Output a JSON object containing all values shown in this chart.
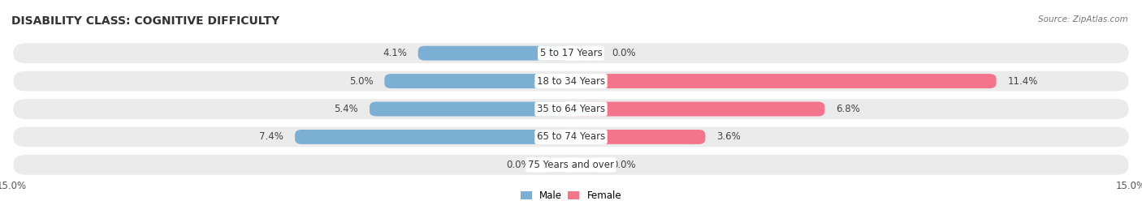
{
  "title": "DISABILITY CLASS: COGNITIVE DIFFICULTY",
  "source": "Source: ZipAtlas.com",
  "categories": [
    "5 to 17 Years",
    "18 to 34 Years",
    "35 to 64 Years",
    "65 to 74 Years",
    "75 Years and over"
  ],
  "male_values": [
    4.1,
    5.0,
    5.4,
    7.4,
    0.0
  ],
  "female_values": [
    0.0,
    11.4,
    6.8,
    3.6,
    0.0
  ],
  "max_val": 15.0,
  "male_color": "#7BAFD4",
  "female_color": "#F4748C",
  "male_color_light": "#B8D4E8",
  "female_color_light": "#F9B8C4",
  "row_bg_color": "#EBEBEB",
  "title_fontsize": 10,
  "label_fontsize": 8.5,
  "tick_fontsize": 8.5,
  "bar_height": 0.52
}
